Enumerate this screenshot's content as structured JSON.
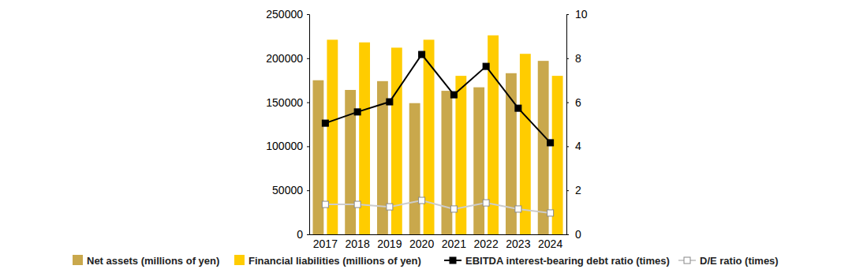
{
  "chart_data": {
    "type": "bar",
    "categories": [
      "2017",
      "2018",
      "2019",
      "2020",
      "2021",
      "2022",
      "2023",
      "2024"
    ],
    "series": [
      {
        "name": "Net assets (millions of yen)",
        "type": "bar",
        "color": "#c9a84c",
        "values": [
          175000,
          164000,
          174000,
          149000,
          163000,
          167000,
          183000,
          197000
        ]
      },
      {
        "name": "Financial liabilities (millions of yen)",
        "type": "bar",
        "color": "#ffcc00",
        "values": [
          221000,
          218000,
          212000,
          221000,
          180000,
          226000,
          205000,
          180000
        ]
      },
      {
        "name": "EBITDA interest-bearing debt ratio (times)",
        "type": "line",
        "axis": "y2",
        "color": "#000000",
        "marker": "square",
        "values": [
          5.05,
          5.56,
          6.02,
          8.17,
          6.34,
          7.63,
          5.73,
          4.16
        ]
      },
      {
        "name": "D/E ratio (times)",
        "type": "line",
        "axis": "y2",
        "color": "#cccccc",
        "marker": "square",
        "values": [
          1.36,
          1.36,
          1.25,
          1.54,
          1.15,
          1.43,
          1.15,
          0.97
        ]
      }
    ],
    "ylim": [
      0,
      250000
    ],
    "yticks": [
      0,
      50000,
      100000,
      150000,
      200000,
      250000
    ],
    "y2lim": [
      0,
      10
    ],
    "y2ticks": [
      0,
      2,
      4,
      6,
      8,
      10
    ],
    "grid": false,
    "legend": "bottom"
  }
}
